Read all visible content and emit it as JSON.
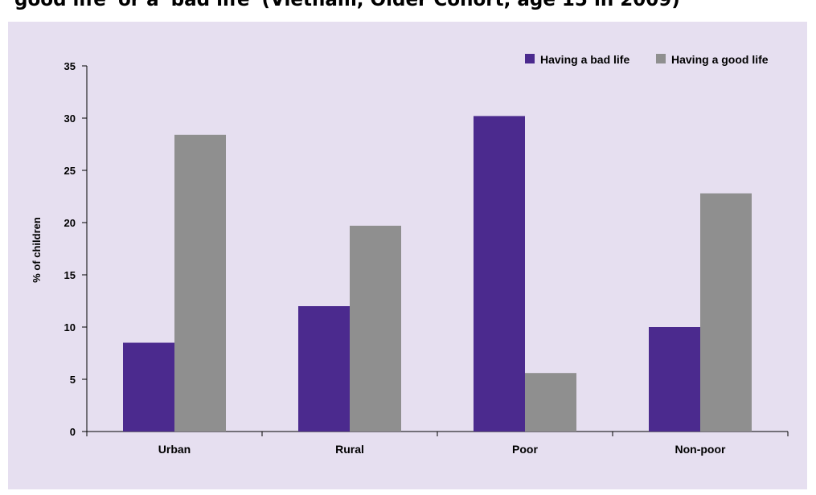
{
  "title": "good life' or a 'bad life' (Vietnam, Older Cohort, age 15 in 2009)",
  "chart_data": {
    "type": "bar",
    "title": "",
    "categories": [
      "Urban",
      "Rural",
      "Poor",
      "Non-poor"
    ],
    "series": [
      {
        "name": "Having a bad life",
        "color": "#4b2a8e",
        "values": [
          8.5,
          12.0,
          30.2,
          10.0
        ]
      },
      {
        "name": "Having a good life",
        "color": "#8f8f8f",
        "values": [
          28.4,
          19.7,
          5.6,
          22.8
        ]
      }
    ],
    "xlabel": "",
    "ylabel": "% of children",
    "ylim": [
      0,
      35
    ],
    "yticks": [
      0,
      5,
      10,
      15,
      20,
      25,
      30,
      35
    ],
    "grid": false,
    "legend_position": "top-right",
    "background_color": "#e6dff0"
  }
}
